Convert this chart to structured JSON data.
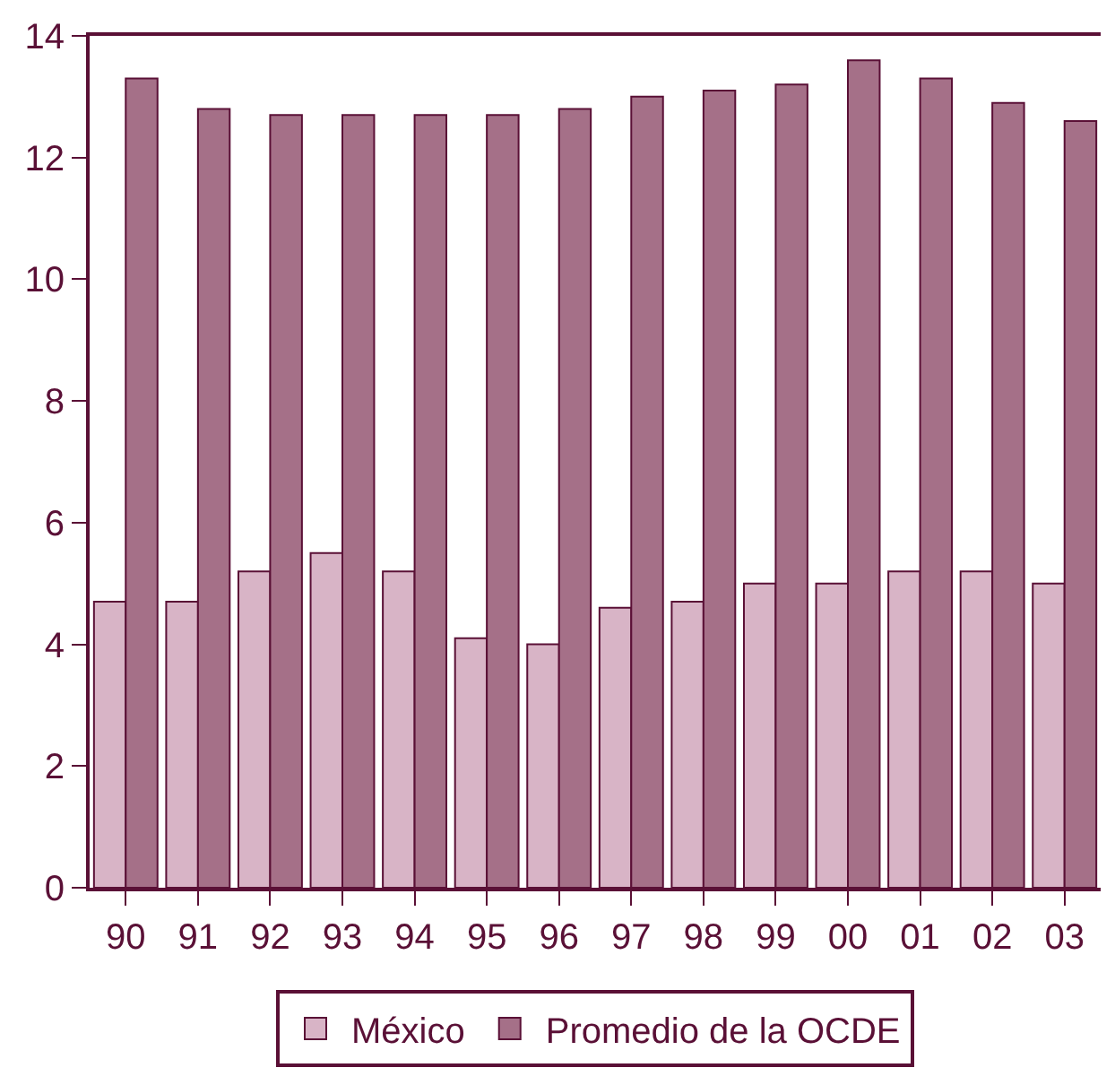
{
  "chart_data": {
    "type": "bar",
    "categories": [
      "90",
      "91",
      "92",
      "93",
      "94",
      "95",
      "96",
      "97",
      "98",
      "99",
      "00",
      "01",
      "02",
      "03"
    ],
    "series": [
      {
        "name": "México",
        "color": "#d8b4c6",
        "values": [
          4.7,
          4.7,
          5.2,
          5.5,
          5.2,
          4.1,
          4.0,
          4.6,
          4.7,
          5.0,
          5.0,
          5.2,
          5.2,
          5.0
        ]
      },
      {
        "name": "Promedio de la OCDE",
        "color": "#a57088",
        "values": [
          13.3,
          12.8,
          12.7,
          12.7,
          12.7,
          12.7,
          12.8,
          13.0,
          13.1,
          13.2,
          13.6,
          13.3,
          12.9,
          12.6
        ]
      }
    ],
    "ylim": [
      0,
      14
    ],
    "yticks": [
      0,
      2,
      4,
      6,
      8,
      10,
      12,
      14
    ],
    "legend": "bottom"
  }
}
